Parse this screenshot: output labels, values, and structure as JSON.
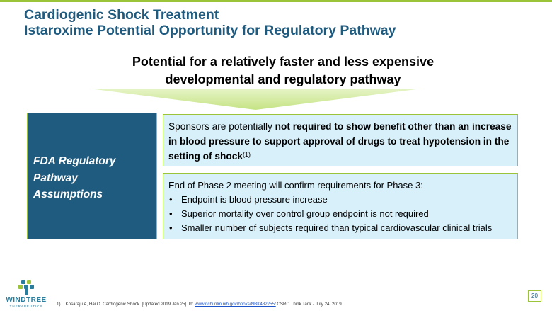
{
  "title": {
    "line1": "Cardiogenic Shock Treatment",
    "line2": "Istaroxime Potential Opportunity for Regulatory Pathway"
  },
  "subtitle": {
    "line1": "Potential for a relatively faster and less expensive",
    "line2": "developmental and regulatory pathway"
  },
  "left_box": {
    "line1": "FDA Regulatory",
    "line2": "Pathway",
    "line3": "Assumptions"
  },
  "box1": {
    "text_plain": "Sponsors are potentially ",
    "text_bold": "not required to show benefit other than an increase in blood pressure to support approval of drugs to treat hypotension in the setting of shock",
    "superscript": "(1)"
  },
  "box2": {
    "intro": "End of Phase 2 meeting will confirm requirements for Phase 3:",
    "bullet_glyph": "•",
    "bullets": [
      "Endpoint is blood pressure increase",
      "Superior mortality over control group endpoint is not required",
      "Smaller number of subjects required than typical cardiovascular clinical trials"
    ]
  },
  "logo": {
    "name": "WINDTREE",
    "sub": "THERAPEUTICS"
  },
  "footnote": {
    "number": "1)",
    "text_before": "Kosaraju A, Hai O. Cardiogenic Shock. [Updated 2019 Jan 25]. In: ",
    "link": "www.ncbi.nlm.nih.gov/books/NBK482255/",
    "text_after": " CSRC Think Tank - July 24, 2019"
  },
  "page_number": "20",
  "colors": {
    "accent_green": "#9bc43b",
    "title_blue": "#1f5a7f",
    "box_fill": "#d8f0fa",
    "arrow_green": "#d4ec9e"
  }
}
